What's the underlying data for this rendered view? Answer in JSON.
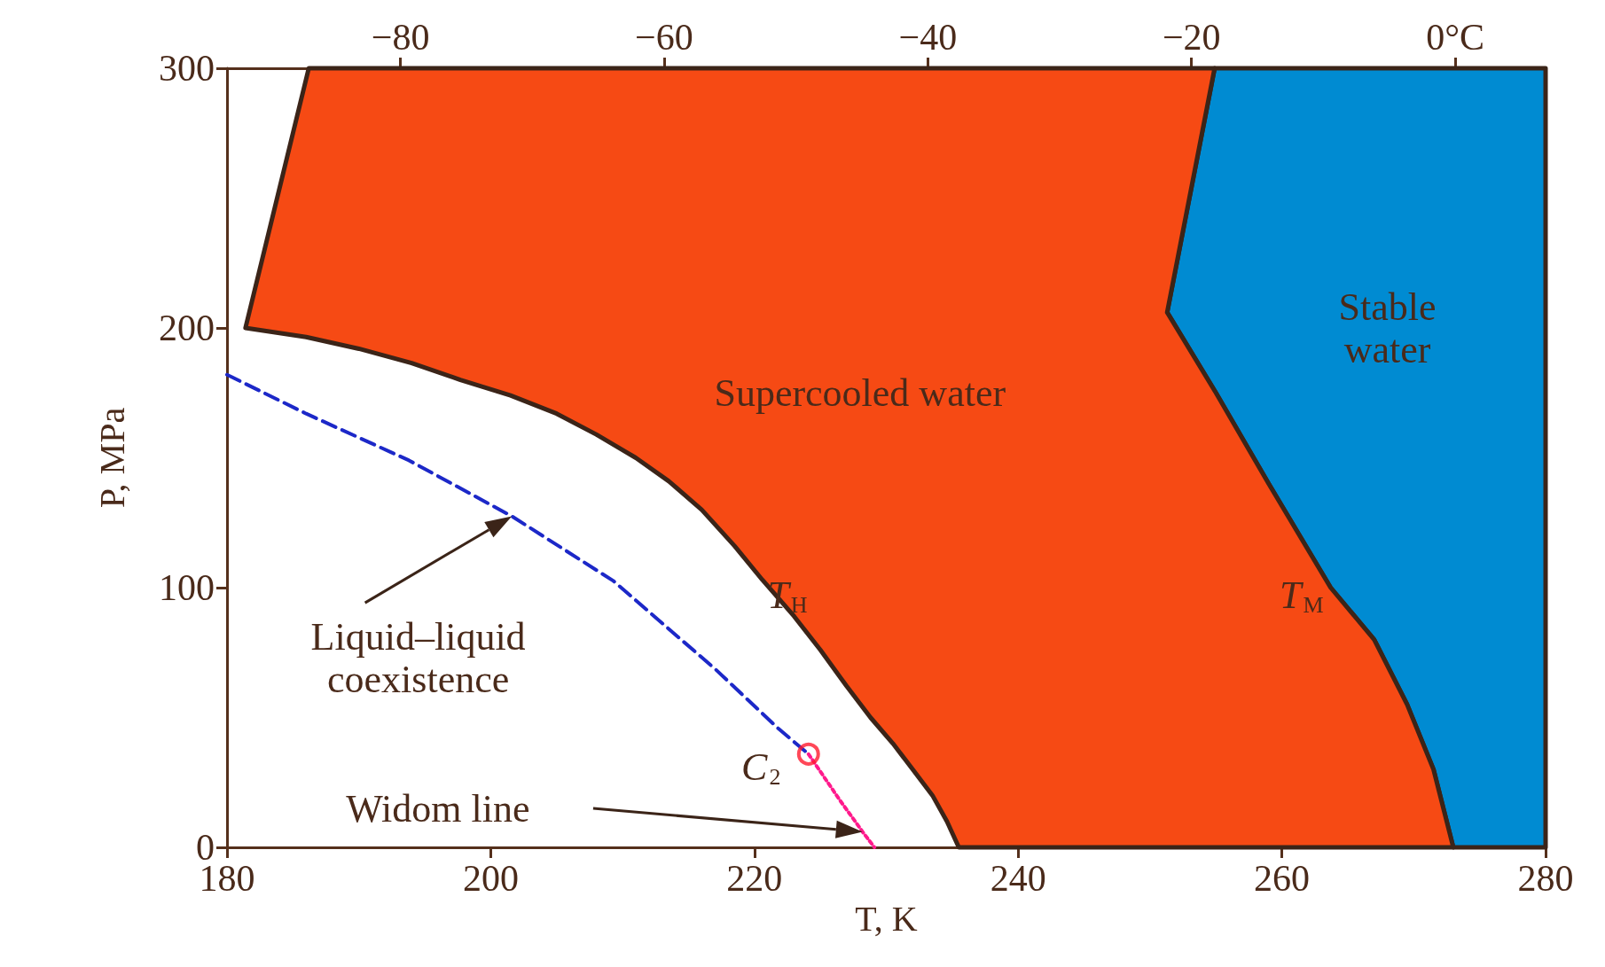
{
  "chart_data": {
    "type": "area",
    "xlabel": "T, K",
    "ylabel": "P, MPa",
    "xlim": [
      180,
      280
    ],
    "xticks": [
      180,
      200,
      220,
      240,
      260,
      280
    ],
    "x2lim": [
      -93.15,
      6.85
    ],
    "x2ticks": [
      {
        "value": -80,
        "label": "−80"
      },
      {
        "value": -60,
        "label": "−60"
      },
      {
        "value": -40,
        "label": "−40"
      },
      {
        "value": -20,
        "label": "−20"
      },
      {
        "value": 0,
        "label": "0°C"
      }
    ],
    "ylim": [
      0,
      300
    ],
    "yticks": [
      0,
      100,
      200,
      300
    ],
    "grid": false,
    "series": [
      {
        "color": "#008bd2",
        "x": [
          254.9,
          280,
          280,
          273,
          271.5,
          269.5,
          267,
          263.7,
          259,
          255,
          251.3
        ],
        "values": [
          300,
          300,
          0,
          0,
          30,
          55,
          80,
          100,
          140,
          175,
          206
        ]
      },
      {
        "color": "#f64a14",
        "x": [
          181.4,
          186.2,
          254.9,
          251.3,
          255,
          259,
          263.7,
          267,
          269.5,
          271.5,
          273,
          235.5,
          234.6,
          233.5,
          232,
          230.5,
          228.8,
          227,
          225,
          223,
          220.6,
          218.5,
          216,
          213.5,
          211,
          208,
          205,
          201.5,
          197.7,
          194,
          190,
          186
        ],
        "values": [
          200,
          300,
          300,
          206,
          175,
          140,
          100,
          80,
          55,
          30,
          0,
          0,
          10,
          20,
          30,
          40,
          50,
          62,
          76,
          89,
          103,
          116,
          130,
          141,
          150,
          159,
          167,
          174,
          180,
          186.5,
          192,
          196.5
        ]
      },
      {
        "type": "line",
        "color": "#1c28c8",
        "marker": "none",
        "line_style": "dashed",
        "x": [
          180,
          186,
          193.8,
          201.6,
          209.3,
          217.1,
          221.8,
          224.1
        ],
        "values": [
          182,
          167,
          149,
          127.5,
          102.6,
          68.3,
          45.8,
          35.9
        ]
      },
      {
        "type": "line",
        "color": "#ff1a8c",
        "marker": "none",
        "line_style": "dotted",
        "x": [
          224.1,
          226.5,
          228.2,
          229.1
        ],
        "values": [
          35.9,
          18,
          6,
          0
        ]
      },
      {
        "type": "scatter",
        "color": "#ff1a2e",
        "marker": "circle",
        "x": [
          224.1
        ],
        "values": [
          35.9
        ]
      }
    ],
    "annotations": [
      "Supercooled water",
      "Stable\nwater",
      "T$_{H}$",
      "T$_{M}$",
      "C$_{2}$",
      "Liquid–liquid\ncoexistence",
      "Widom line"
    ]
  }
}
